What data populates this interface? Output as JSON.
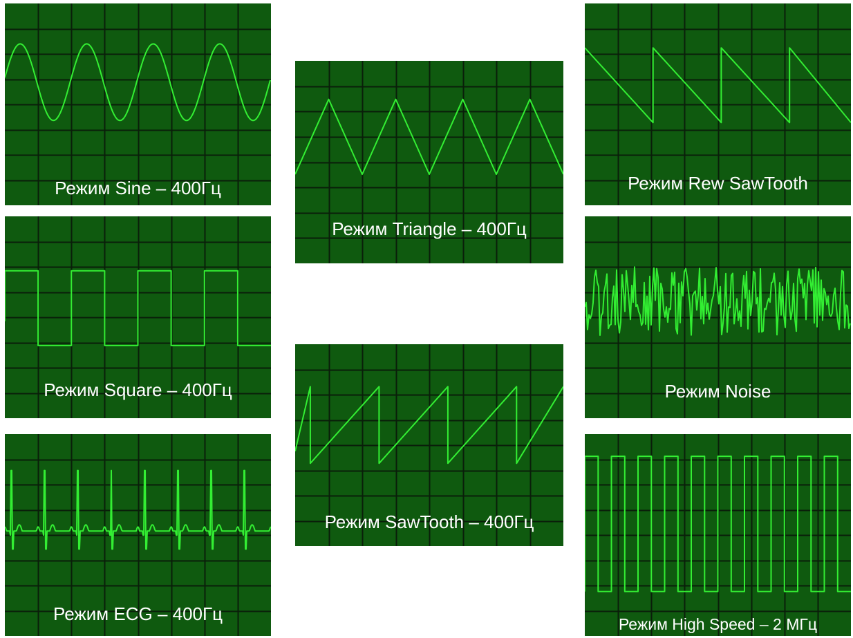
{
  "colors": {
    "screen_background": "#0f5a0f",
    "grid_lines": "#0a1e0a",
    "trace": "#33ee33",
    "label_text": "#ffffff"
  },
  "panels": [
    {
      "id": "sine",
      "label": "Режим Sine – 400Гц",
      "waveform": "sine"
    },
    {
      "id": "square",
      "label": "Режим Square – 400Гц",
      "waveform": "square"
    },
    {
      "id": "ecg",
      "label": "Режим ECG – 400Гц",
      "waveform": "ecg"
    },
    {
      "id": "triangle",
      "label": "Режим Triangle – 400Гц",
      "waveform": "triangle"
    },
    {
      "id": "sawtooth",
      "label": "Режим SawTooth – 400Гц",
      "waveform": "sawtooth"
    },
    {
      "id": "rew-sawtooth",
      "label": "Режим Rew SawTooth",
      "waveform": "rew-sawtooth"
    },
    {
      "id": "noise",
      "label": "Режим Noise",
      "waveform": "noise"
    },
    {
      "id": "high-speed",
      "label": "Режим High Speed – 2 МГц",
      "waveform": "high-speed"
    }
  ]
}
